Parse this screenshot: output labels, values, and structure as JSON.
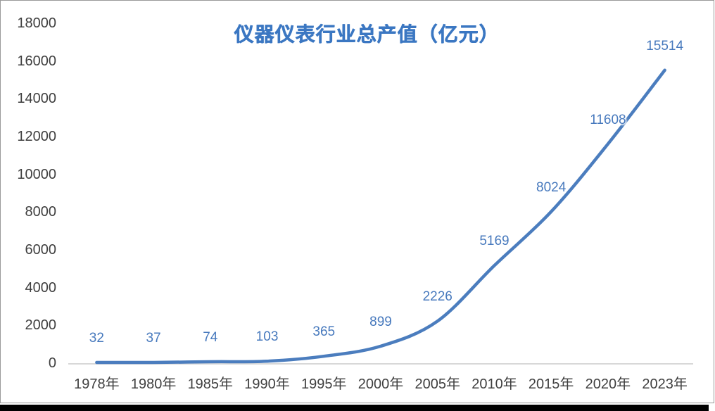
{
  "chart_data": {
    "type": "line",
    "title": "仪器仪表行业总产值（亿元）",
    "categories": [
      "1978年",
      "1980年",
      "1985年",
      "1990年",
      "1995年",
      "2000年",
      "2005年",
      "2010年",
      "2015年",
      "2020年",
      "2023年"
    ],
    "values": [
      32,
      37,
      74,
      103,
      365,
      899,
      2226,
      5169,
      8024,
      11608,
      15514
    ],
    "data_labels": [
      "32",
      "37",
      "74",
      "103",
      "365",
      "899",
      "2226",
      "5169",
      "8024",
      "11608",
      "15514"
    ],
    "ylim": [
      0,
      18000
    ],
    "yticks": [
      0,
      2000,
      4000,
      6000,
      8000,
      10000,
      12000,
      14000,
      16000,
      18000
    ],
    "xlabel": "",
    "ylabel": "",
    "grid": false,
    "legend": false,
    "smooth": true,
    "colors": {
      "line": "#4b7dbe",
      "data_label": "#4779bd",
      "title": "#3b77c2",
      "axis_text": "#3f3f3f",
      "axis_line": "#d8d8d8",
      "frame_border": "#9a9a9a",
      "bottom_shadow": "#000000",
      "background": "#ffffff"
    }
  }
}
